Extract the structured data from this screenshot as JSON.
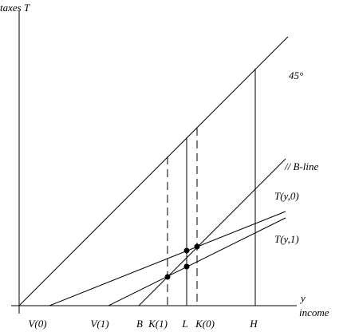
{
  "axes": {
    "y_label": "taxes T",
    "x_symbol": "y",
    "x_label": "income"
  },
  "lines": {
    "diagonal": "45°",
    "b_line": "// B-line",
    "t0": "T(y,0)",
    "t1": "T(y,1)"
  },
  "x_points": [
    "V(0)",
    "V(1)",
    "B",
    "K(1)",
    "L",
    "K(0)",
    "H"
  ]
}
